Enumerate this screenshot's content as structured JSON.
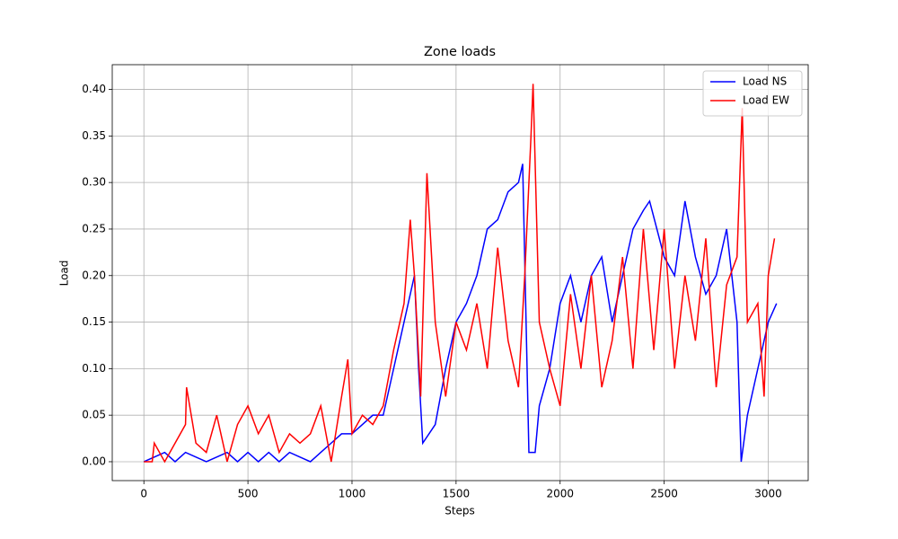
{
  "chart_data": {
    "type": "line",
    "title": "Zone loads",
    "x_label": "Steps",
    "y_label": "Load",
    "xlim": [
      -152,
      3192
    ],
    "ylim": [
      -0.0203,
      0.4266
    ],
    "xticks": [
      0,
      500,
      1000,
      1500,
      2000,
      2500,
      3000
    ],
    "yticks": [
      {
        "value": 0,
        "label": "0.00"
      },
      0.05,
      {
        "value": 0.1,
        "label": "0.10"
      },
      0.15,
      {
        "value": 0.2,
        "label": "0.20"
      },
      0.25,
      {
        "value": 0.3,
        "label": "0.30"
      },
      0.35,
      {
        "value": 0.4,
        "label": "0.40"
      }
    ],
    "grid": true,
    "legend": "upper right",
    "series": [
      {
        "name": "Load NS",
        "color": "#0000ff",
        "x": [
          0,
          100,
          150,
          200,
          300,
          400,
          450,
          500,
          550,
          600,
          650,
          700,
          800,
          850,
          900,
          950,
          1000,
          1050,
          1100,
          1150,
          1200,
          1250,
          1300,
          1320,
          1340,
          1400,
          1450,
          1500,
          1550,
          1600,
          1650,
          1700,
          1750,
          1800,
          1820,
          1850,
          1880,
          1900,
          1950,
          2000,
          2050,
          2100,
          2150,
          2200,
          2250,
          2300,
          2350,
          2400,
          2430,
          2500,
          2550,
          2600,
          2650,
          2700,
          2750,
          2800,
          2850,
          2870,
          2900,
          2950,
          3000,
          3040
        ],
        "values": [
          0,
          0.01,
          0,
          0.01,
          0,
          0.01,
          0,
          0.01,
          0,
          0.01,
          0,
          0.01,
          0,
          0.01,
          0.02,
          0.03,
          0.03,
          0.04,
          0.05,
          0.05,
          0.1,
          0.15,
          0.2,
          0.1,
          0.02,
          0.04,
          0.1,
          0.15,
          0.17,
          0.2,
          0.25,
          0.26,
          0.29,
          0.3,
          0.32,
          0.01,
          0.01,
          0.06,
          0.1,
          0.17,
          0.2,
          0.15,
          0.2,
          0.22,
          0.15,
          0.2,
          0.25,
          0.27,
          0.28,
          0.22,
          0.2,
          0.28,
          0.22,
          0.18,
          0.2,
          0.25,
          0.15,
          0,
          0.05,
          0.1,
          0.15,
          0.17
        ]
      },
      {
        "name": "Load EW",
        "color": "#ff0000",
        "x": [
          0,
          40,
          50,
          100,
          150,
          200,
          205,
          250,
          300,
          350,
          400,
          450,
          500,
          550,
          600,
          650,
          700,
          750,
          800,
          850,
          900,
          950,
          980,
          1000,
          1050,
          1100,
          1150,
          1200,
          1250,
          1280,
          1300,
          1330,
          1360,
          1400,
          1450,
          1500,
          1550,
          1600,
          1650,
          1700,
          1750,
          1800,
          1830,
          1860,
          1870,
          1900,
          1950,
          2000,
          2050,
          2100,
          2150,
          2200,
          2250,
          2300,
          2350,
          2400,
          2450,
          2500,
          2550,
          2600,
          2650,
          2700,
          2750,
          2800,
          2850,
          2875,
          2900,
          2950,
          2980,
          3000,
          3030
        ],
        "values": [
          0,
          0,
          0.02,
          0,
          0.02,
          0.04,
          0.08,
          0.02,
          0.01,
          0.05,
          0,
          0.04,
          0.06,
          0.03,
          0.05,
          0.01,
          0.03,
          0.02,
          0.03,
          0.06,
          0,
          0.07,
          0.11,
          0.03,
          0.05,
          0.04,
          0.06,
          0.12,
          0.17,
          0.26,
          0.2,
          0.07,
          0.31,
          0.15,
          0.07,
          0.15,
          0.12,
          0.17,
          0.1,
          0.23,
          0.13,
          0.08,
          0.2,
          0.35,
          0.406,
          0.15,
          0.1,
          0.06,
          0.18,
          0.1,
          0.2,
          0.08,
          0.13,
          0.22,
          0.1,
          0.25,
          0.12,
          0.25,
          0.1,
          0.2,
          0.13,
          0.24,
          0.08,
          0.19,
          0.22,
          0.38,
          0.15,
          0.17,
          0.07,
          0.2,
          0.24
        ]
      }
    ]
  }
}
